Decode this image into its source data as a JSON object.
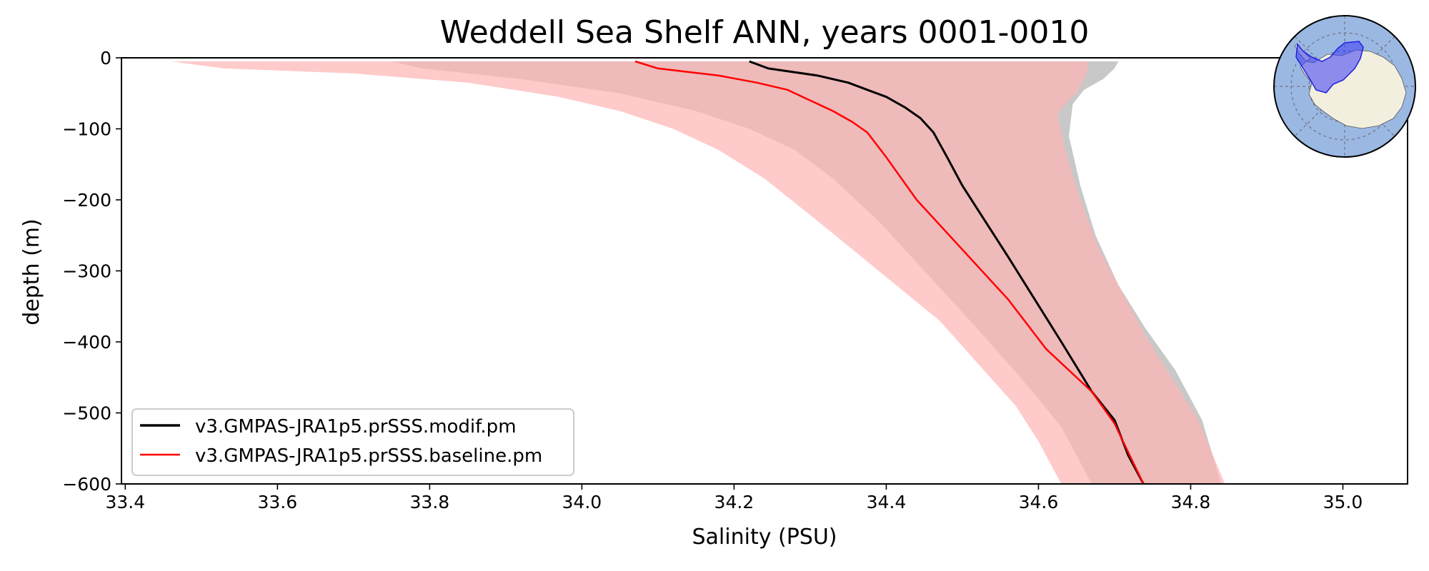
{
  "chart_data": {
    "type": "line",
    "title": "Weddell Sea Shelf ANN, years 0001-0010",
    "xlabel": "Salinity (PSU)",
    "ylabel": "depth (m)",
    "xlim": [
      33.395,
      35.085
    ],
    "ylim": [
      -600,
      0
    ],
    "xticks": [
      33.4,
      33.6,
      33.8,
      34.0,
      34.2,
      34.4,
      34.6,
      34.8,
      35.0
    ],
    "xtick_labels": [
      "33.4",
      "33.6",
      "33.8",
      "34.0",
      "34.2",
      "34.4",
      "34.6",
      "34.8",
      "35.0"
    ],
    "yticks": [
      0,
      -100,
      -200,
      -300,
      -400,
      -500,
      -600
    ],
    "ytick_labels": [
      "0",
      "−100",
      "−200",
      "−300",
      "−400",
      "−500",
      "−600"
    ],
    "legend_position": "bottom-left",
    "series": [
      {
        "name": "v3.GMPAS-JRA1p5.prSSS.modif.pm",
        "color": "#000000",
        "mean": [
          [
            34.22,
            -5
          ],
          [
            34.245,
            -15
          ],
          [
            34.31,
            -25
          ],
          [
            34.35,
            -35
          ],
          [
            34.375,
            -45
          ],
          [
            34.4,
            -55
          ],
          [
            34.425,
            -70
          ],
          [
            34.445,
            -85
          ],
          [
            34.462,
            -105
          ],
          [
            34.48,
            -140
          ],
          [
            34.5,
            -180
          ],
          [
            34.53,
            -230
          ],
          [
            34.56,
            -280
          ],
          [
            34.595,
            -340
          ],
          [
            34.63,
            -400
          ],
          [
            34.67,
            -470
          ],
          [
            34.7,
            -510
          ],
          [
            34.718,
            -560
          ],
          [
            34.738,
            -600
          ]
        ],
        "band_fill": "#c8c8c8",
        "band": [
          [
            33.75,
            -5
          ],
          [
            33.79,
            -15
          ],
          [
            33.92,
            -30
          ],
          [
            34.05,
            -50
          ],
          [
            34.15,
            -75
          ],
          [
            34.22,
            -100
          ],
          [
            34.28,
            -130
          ],
          [
            34.33,
            -170
          ],
          [
            34.39,
            -230
          ],
          [
            34.45,
            -300
          ],
          [
            34.51,
            -370
          ],
          [
            34.56,
            -430
          ],
          [
            34.6,
            -480
          ],
          [
            34.63,
            -520
          ],
          [
            34.65,
            -560
          ],
          [
            34.67,
            -600
          ],
          [
            34.84,
            -600
          ],
          [
            34.815,
            -510
          ],
          [
            34.78,
            -440
          ],
          [
            34.74,
            -380
          ],
          [
            34.705,
            -320
          ],
          [
            34.675,
            -250
          ],
          [
            34.655,
            -180
          ],
          [
            34.64,
            -110
          ],
          [
            34.645,
            -65
          ],
          [
            34.66,
            -45
          ],
          [
            34.685,
            -30
          ],
          [
            34.7,
            -15
          ],
          [
            34.705,
            -5
          ]
        ]
      },
      {
        "name": "v3.GMPAS-JRA1p5.prSSS.baseline.pm",
        "color": "#ff0000",
        "mean": [
          [
            34.07,
            -5
          ],
          [
            34.1,
            -15
          ],
          [
            34.18,
            -25
          ],
          [
            34.23,
            -35
          ],
          [
            34.27,
            -45
          ],
          [
            34.3,
            -60
          ],
          [
            34.33,
            -75
          ],
          [
            34.355,
            -90
          ],
          [
            34.375,
            -105
          ],
          [
            34.4,
            -140
          ],
          [
            34.44,
            -200
          ],
          [
            34.5,
            -270
          ],
          [
            34.56,
            -340
          ],
          [
            34.61,
            -410
          ],
          [
            34.67,
            -470
          ],
          [
            34.7,
            -515
          ],
          [
            34.72,
            -560
          ],
          [
            34.738,
            -600
          ]
        ],
        "band_fill": "#ffb3b3",
        "band": [
          [
            33.46,
            -5
          ],
          [
            33.53,
            -15
          ],
          [
            33.7,
            -22
          ],
          [
            33.85,
            -35
          ],
          [
            33.97,
            -55
          ],
          [
            34.05,
            -75
          ],
          [
            34.12,
            -100
          ],
          [
            34.18,
            -130
          ],
          [
            34.24,
            -170
          ],
          [
            34.31,
            -230
          ],
          [
            34.39,
            -300
          ],
          [
            34.47,
            -370
          ],
          [
            34.52,
            -430
          ],
          [
            34.57,
            -490
          ],
          [
            34.6,
            -540
          ],
          [
            34.63,
            -600
          ],
          [
            34.845,
            -600
          ],
          [
            34.81,
            -510
          ],
          [
            34.775,
            -450
          ],
          [
            34.74,
            -390
          ],
          [
            34.71,
            -330
          ],
          [
            34.68,
            -270
          ],
          [
            34.655,
            -200
          ],
          [
            34.635,
            -130
          ],
          [
            34.625,
            -80
          ],
          [
            34.635,
            -65
          ],
          [
            34.65,
            -50
          ],
          [
            34.66,
            -30
          ],
          [
            34.665,
            -15
          ],
          [
            34.665,
            -5
          ]
        ]
      }
    ]
  },
  "inset_map": {
    "label": "Antarctica region inset"
  }
}
